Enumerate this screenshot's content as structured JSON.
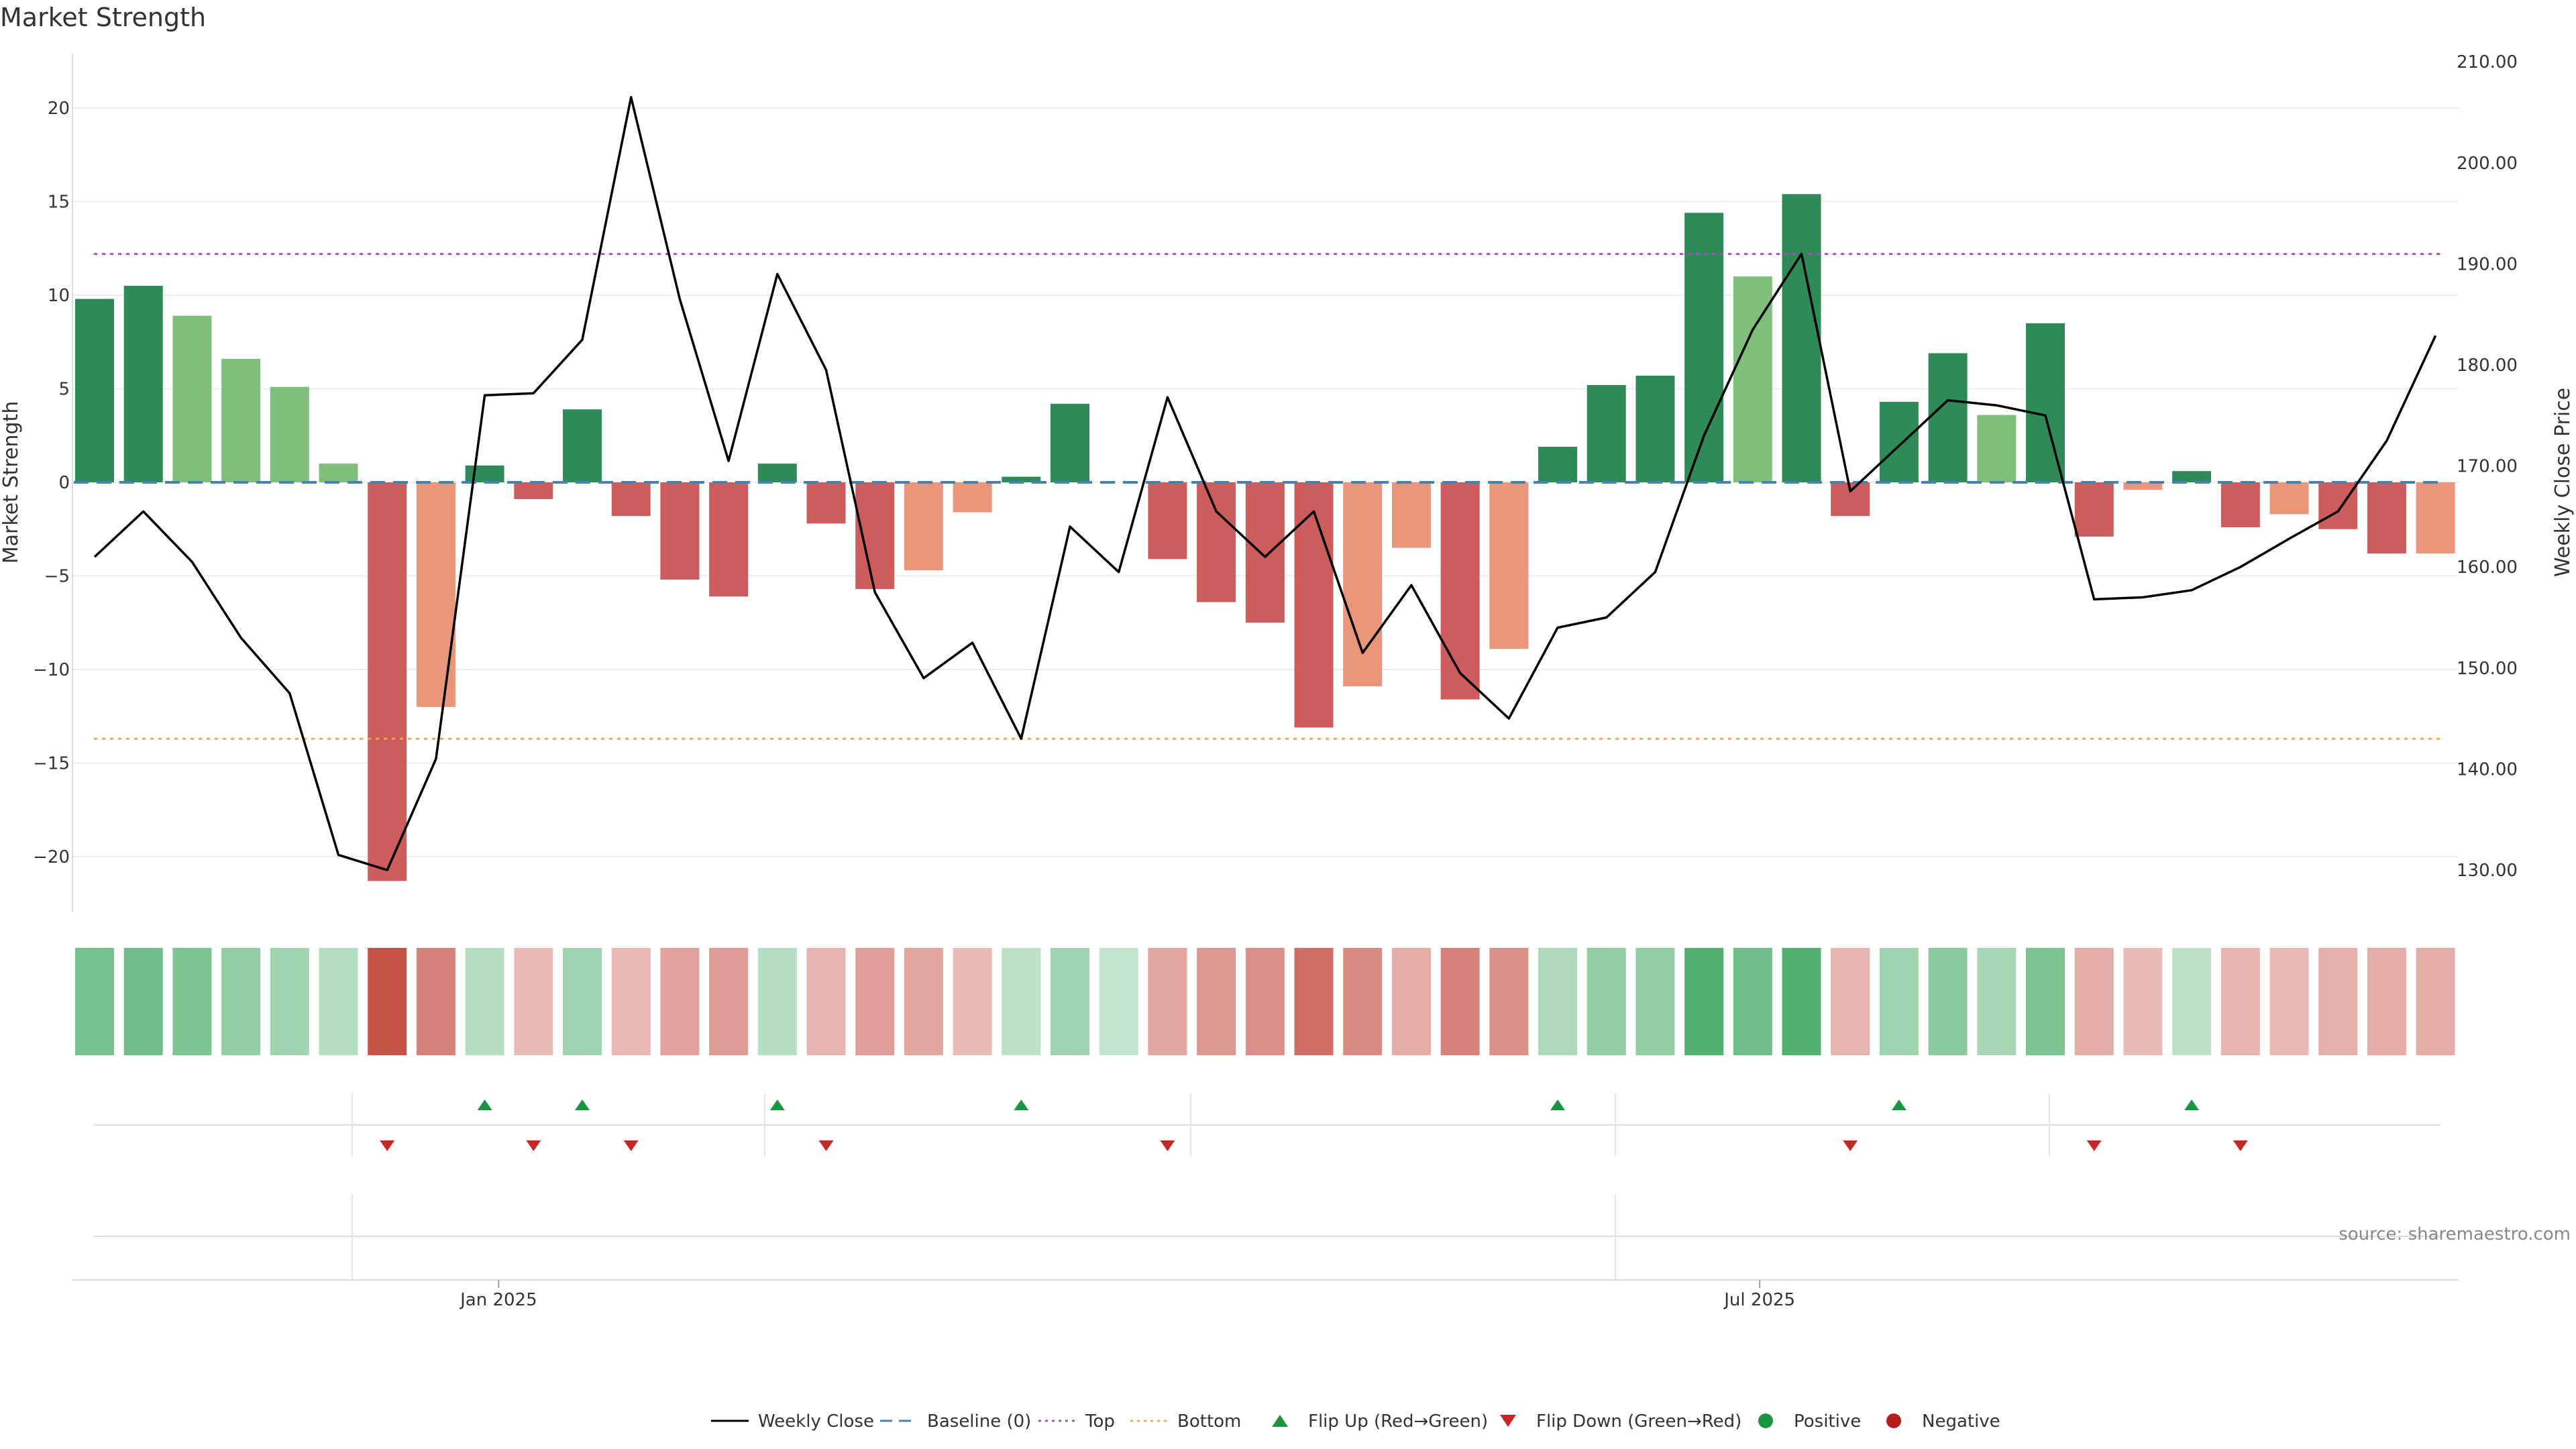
{
  "title": "Market Strength",
  "source": "source: sharemaestro.com",
  "colors": {
    "pos_strong": "#2e8b57",
    "pos_weak": "#7fbf7b",
    "neg_strong": "#cd5c5c",
    "neg_weak": "#e9967a",
    "price_line": "#000000",
    "baseline": "#4682b4",
    "top": "#9b59b6",
    "bottom": "#f4a460",
    "flip_up": "#1a9641",
    "flip_down": "#c62828",
    "positive_dot": "#1a9641",
    "negative_dot": "#b71c1c"
  },
  "chart_data": {
    "type": "bar",
    "x_start": "2024-11-04",
    "x_step_days": 7,
    "ylabel": "Market Strength",
    "ylabel_right": "Weekly Close Price",
    "ylim": [
      -23,
      23
    ],
    "ylim_right": [
      125,
      212
    ],
    "yticks_left": [
      "−20",
      "−15",
      "−10",
      "−5",
      "0",
      "5",
      "10",
      "15",
      "20"
    ],
    "yticks_right": [
      "130.00",
      "140.00",
      "150.00",
      "160.00",
      "170.00",
      "180.00",
      "190.00",
      "200.00",
      "210.00"
    ],
    "xticks": [
      {
        "label": "Jan 2025",
        "date": "2025-01-01"
      },
      {
        "label": "Jul 2025",
        "date": "2025-07-01"
      }
    ],
    "baseline": 0,
    "top_line": 12.2,
    "bottom_line": -13.7,
    "strength": [
      9.8,
      10.5,
      8.9,
      6.6,
      5.1,
      1.0,
      -21.3,
      -12.0,
      0.9,
      -0.9,
      3.9,
      -1.8,
      -5.2,
      -6.1,
      1.0,
      -2.2,
      -5.7,
      -4.7,
      -1.6,
      0.3,
      4.2,
      0.0,
      -4.1,
      -6.4,
      -7.5,
      -13.1,
      -10.9,
      -3.5,
      -11.6,
      -8.9,
      1.9,
      5.2,
      5.7,
      14.4,
      11.0,
      15.4,
      -1.8,
      4.3,
      6.9,
      3.6,
      8.5,
      -2.9,
      -0.4,
      0.6,
      -2.4,
      -1.7,
      -2.5,
      -3.8,
      -3.8
    ],
    "strength_shade": [
      "strong",
      "strong",
      "weak",
      "weak",
      "weak",
      "weak",
      "strong",
      "weak",
      "strong",
      "strong",
      "strong",
      "strong",
      "strong",
      "strong",
      "strong",
      "strong",
      "strong",
      "weak",
      "weak",
      "strong",
      "strong",
      "strong",
      "strong",
      "strong",
      "strong",
      "strong",
      "weak",
      "weak",
      "strong",
      "weak",
      "strong",
      "strong",
      "strong",
      "strong",
      "weak",
      "strong",
      "strong",
      "strong",
      "strong",
      "weak",
      "strong",
      "strong",
      "weak",
      "strong",
      "strong",
      "weak",
      "strong",
      "strong",
      "weak"
    ],
    "price": [
      161.0,
      165.5,
      160.5,
      153.0,
      147.5,
      131.5,
      130.0,
      141.0,
      177.0,
      177.2,
      182.5,
      206.5,
      186.5,
      170.5,
      189.0,
      179.5,
      157.5,
      149.0,
      152.5,
      143.0,
      164.0,
      159.5,
      176.8,
      165.5,
      161.0,
      165.5,
      151.5,
      158.2,
      149.5,
      145.0,
      154.0,
      155.0,
      159.5,
      173.0,
      183.5,
      191.0,
      167.5,
      172.0,
      176.5,
      176.0,
      175.0,
      156.8,
      157.0,
      157.7,
      160.0,
      162.8,
      165.5,
      172.5,
      182.9
    ],
    "heat": [
      0.7,
      0.75,
      0.65,
      0.5,
      0.4,
      0.25,
      0.95,
      0.6,
      0.25,
      0.2,
      0.4,
      0.22,
      0.38,
      0.42,
      0.25,
      0.25,
      0.4,
      0.35,
      0.2,
      0.2,
      0.4,
      0.15,
      0.35,
      0.45,
      0.5,
      0.75,
      0.55,
      0.3,
      0.6,
      0.5,
      0.3,
      0.5,
      0.5,
      0.95,
      0.75,
      0.95,
      0.25,
      0.4,
      0.55,
      0.35,
      0.65,
      0.3,
      0.2,
      0.2,
      0.25,
      0.22,
      0.28,
      0.3,
      0.3
    ],
    "flip_up_weeks": [
      8,
      10,
      14,
      19,
      30,
      37,
      43
    ],
    "flip_down_weeks": [
      6,
      9,
      11,
      15,
      22,
      36,
      41,
      44
    ],
    "legend": [
      {
        "label": "Weekly Close",
        "kind": "line"
      },
      {
        "label": "Baseline (0)",
        "kind": "dashed"
      },
      {
        "label": "Top",
        "kind": "dotted-top"
      },
      {
        "label": "Bottom",
        "kind": "dotted-bottom"
      },
      {
        "label": "Flip Up (Red→Green)",
        "kind": "up"
      },
      {
        "label": "Flip Down (Green→Red)",
        "kind": "down"
      },
      {
        "label": "Positive",
        "kind": "pos-dot"
      },
      {
        "label": "Negative",
        "kind": "neg-dot"
      }
    ]
  }
}
